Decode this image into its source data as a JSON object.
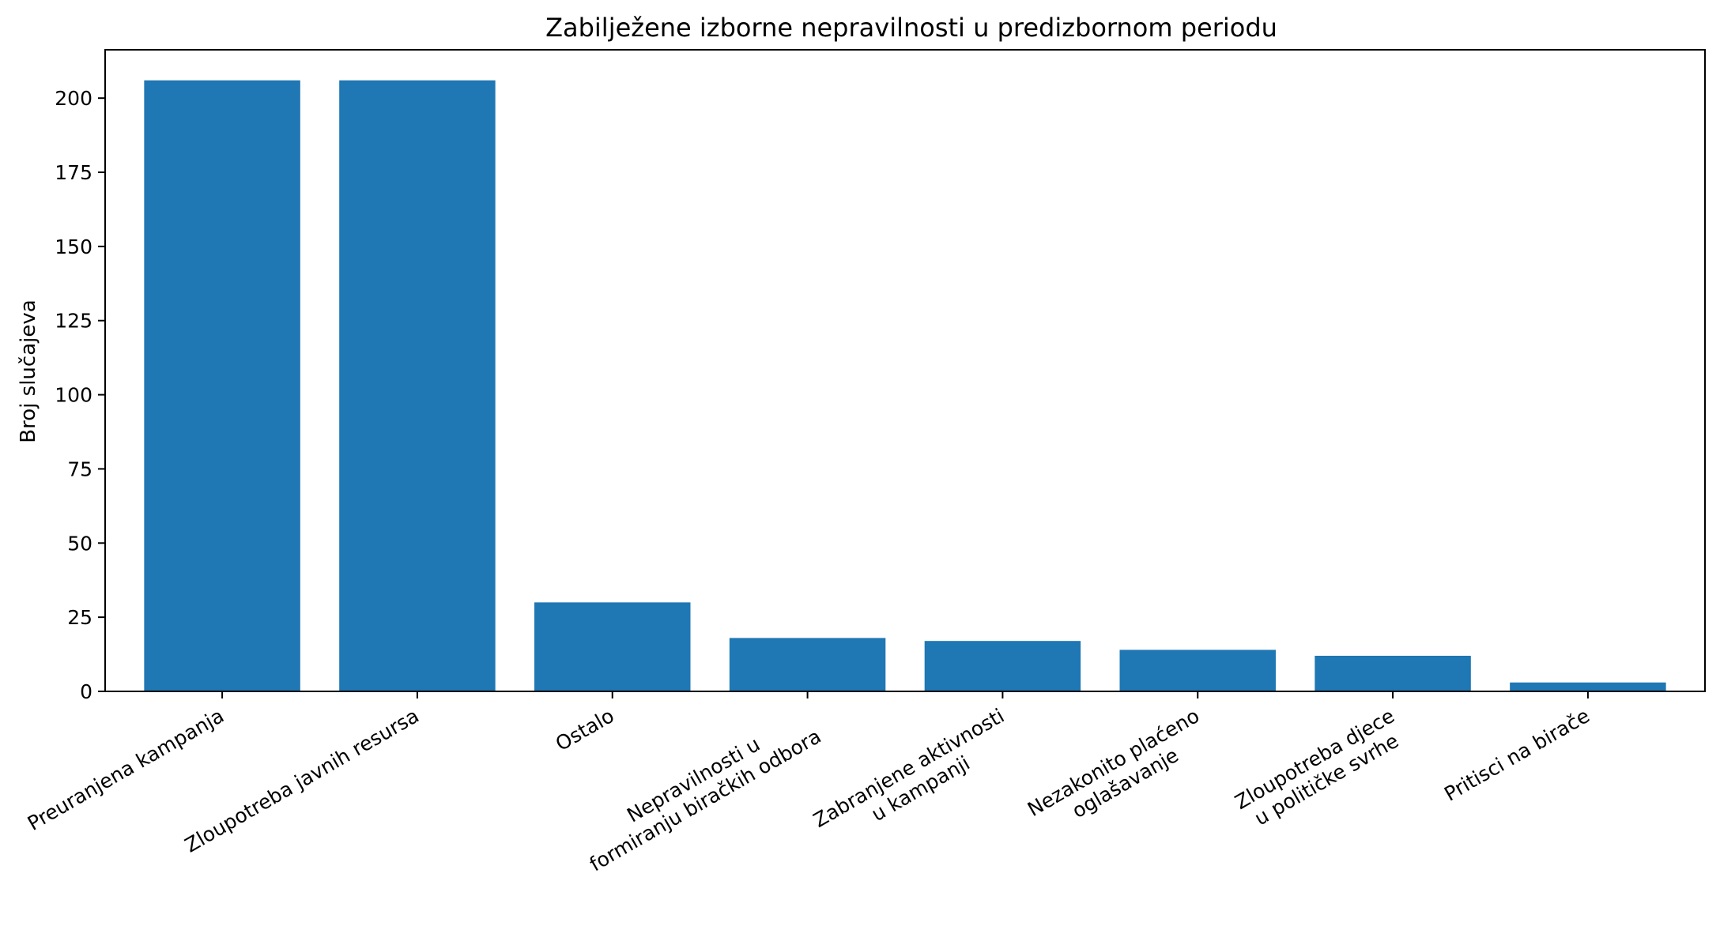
{
  "chart_data": {
    "type": "bar",
    "title": "Zabilježene izborne nepravilnosti u predizbornom periodu",
    "xlabel": "",
    "ylabel": "Broj slučajeva",
    "categories": [
      "Preuranjena kampanja",
      "Zloupotreba javnih resursa",
      "Ostalo",
      "Nepravilnosti u\nformiranju biračkih odbora",
      "Zabranjene aktivnosti\nu kampanji",
      "Nezakonito plaćeno\noglašavanje",
      "Zloupotreba djece\nu političke svrhe",
      "Pritisci na birače"
    ],
    "values": [
      206,
      206,
      30,
      18,
      17,
      14,
      12,
      3
    ],
    "ylim": [
      0,
      216.3
    ],
    "yticks": [
      0,
      25,
      50,
      75,
      100,
      125,
      150,
      175,
      200
    ],
    "bar_color": "#1f77b4",
    "grid": false,
    "legend": "none"
  }
}
